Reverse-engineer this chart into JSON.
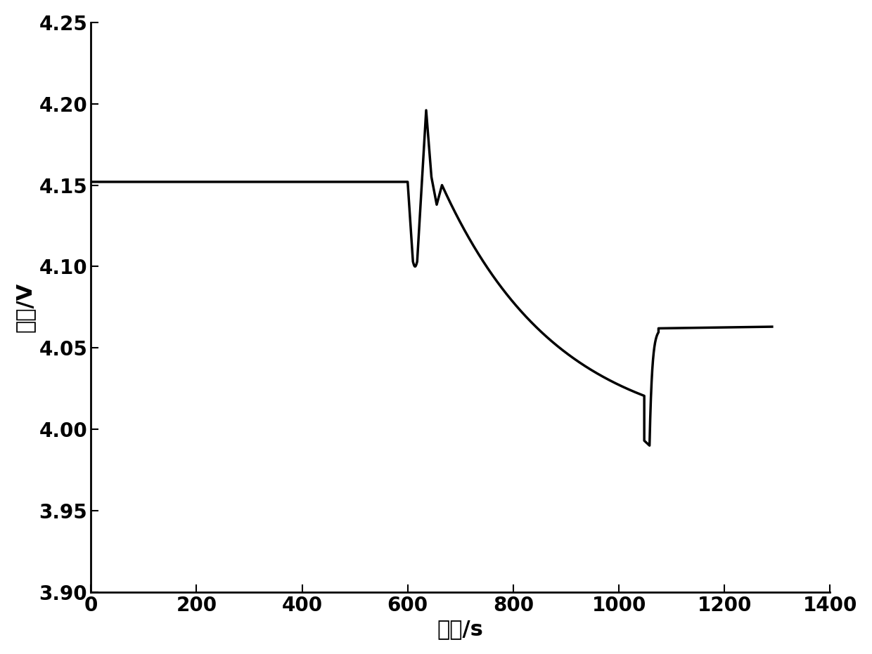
{
  "title": "",
  "xlabel": "时间/s",
  "ylabel": "电压/V",
  "xlim": [
    0,
    1400
  ],
  "ylim": [
    3.9,
    4.25
  ],
  "xticks": [
    0,
    200,
    400,
    600,
    800,
    1000,
    1200,
    1400
  ],
  "yticks": [
    3.9,
    3.95,
    4.0,
    4.05,
    4.1,
    4.15,
    4.2,
    4.25
  ],
  "line_color": "#000000",
  "line_width": 2.5,
  "background_color": "#ffffff",
  "xlabel_fontsize": 22,
  "ylabel_fontsize": 22,
  "tick_fontsize": 20
}
